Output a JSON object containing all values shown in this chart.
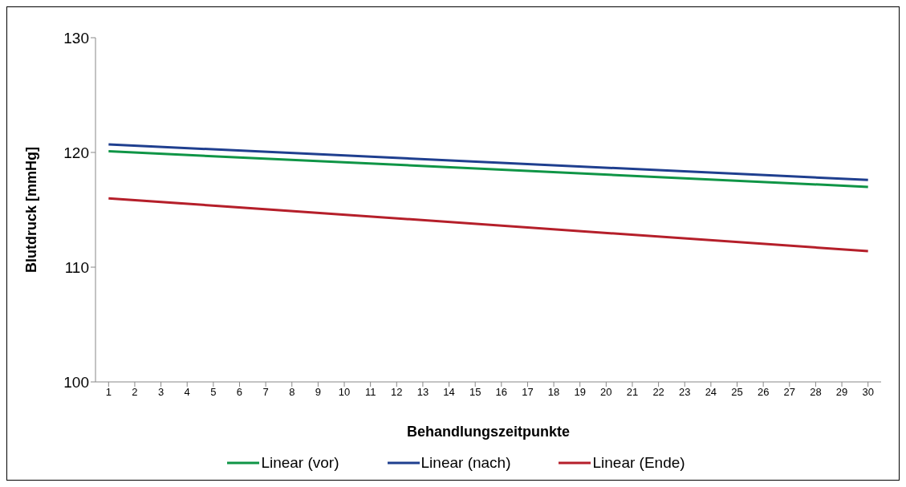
{
  "chart_data": {
    "type": "line",
    "xlabel": "Behandlungszeitpunkte",
    "ylabel": "Blutdruck [mmHg]",
    "x": [
      1,
      30
    ],
    "xlim": [
      0.5,
      30.5
    ],
    "xticks": [
      1,
      2,
      3,
      4,
      5,
      6,
      7,
      8,
      9,
      10,
      11,
      12,
      13,
      14,
      15,
      16,
      17,
      18,
      19,
      20,
      21,
      22,
      23,
      24,
      25,
      26,
      27,
      28,
      29,
      30
    ],
    "ylim": [
      100,
      130
    ],
    "yticks": [
      100,
      110,
      120,
      130
    ],
    "legend": "bottom",
    "marker": "none",
    "line_style": "solid",
    "series": [
      {
        "name": "Linear (vor)",
        "color": "#0f9546",
        "values": [
          120.1,
          117.0
        ]
      },
      {
        "name": "Linear (nach)",
        "color": "#1f3f8f",
        "values": [
          120.7,
          117.6
        ]
      },
      {
        "name": "Linear (Ende)",
        "color": "#b51f2a",
        "values": [
          116.0,
          111.4
        ]
      }
    ]
  }
}
